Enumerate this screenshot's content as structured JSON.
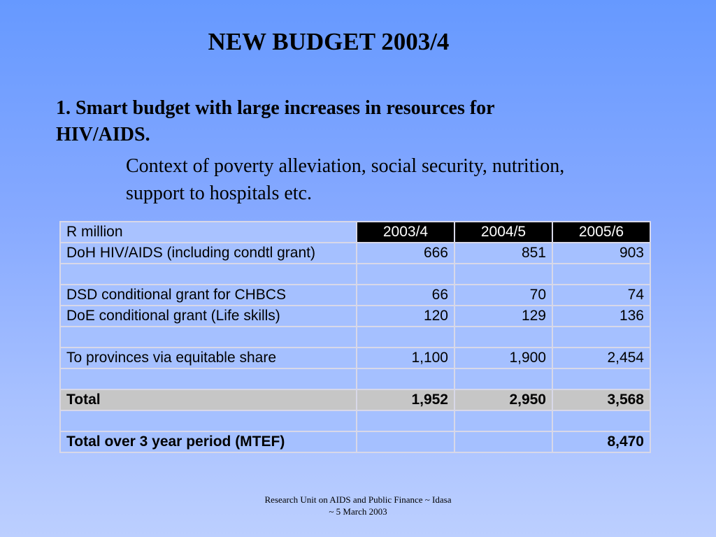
{
  "title": "NEW BUDGET 2003/4",
  "point": {
    "line1": "1. Smart budget with large increases in resources for",
    "line2": "HIV/AIDS."
  },
  "context": {
    "line1": "Context of  poverty alleviation, social security, nutrition,",
    "line2": "support to hospitals etc."
  },
  "table": {
    "header": {
      "label": "R million",
      "years": [
        "2003/4",
        "2004/5",
        "2005/6"
      ]
    },
    "rows": [
      {
        "label": "DoH HIV/AIDS (including condtl grant)",
        "values": [
          "666",
          "851",
          "903"
        ]
      },
      {
        "label": "",
        "values": [
          "",
          "",
          ""
        ]
      },
      {
        "label": "DSD conditional grant for CHBCS",
        "values": [
          "66",
          "70",
          "74"
        ]
      },
      {
        "label": "DoE conditional grant (Life skills)",
        "values": [
          "120",
          "129",
          "136"
        ]
      },
      {
        "label": "",
        "values": [
          "",
          "",
          ""
        ]
      },
      {
        "label": "To provinces via equitable share",
        "values": [
          "1,100",
          "1,900",
          "2,454"
        ]
      },
      {
        "label": "",
        "values": [
          "",
          "",
          ""
        ]
      },
      {
        "label": "Total",
        "values": [
          "1,952",
          "2,950",
          "3,568"
        ]
      },
      {
        "label": "",
        "values": [
          "",
          "",
          ""
        ]
      },
      {
        "label": "Total over 3 year period (MTEF)",
        "values": [
          "",
          "",
          "8,470"
        ]
      }
    ]
  },
  "footer": {
    "line1": "Research Unit on AIDS and Public Finance ~ Idasa",
    "line2": "~ 5 March 2003"
  },
  "colors": {
    "background_top": "#6699ff",
    "background_bottom": "#bccfff",
    "header_year_bg": "#000000",
    "total_row_bg": "#c6c6c6"
  }
}
